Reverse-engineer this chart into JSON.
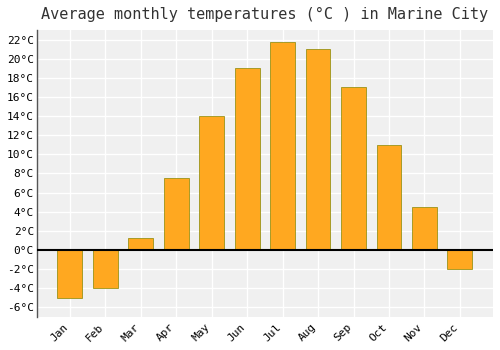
{
  "title": "Average monthly temperatures (°C ) in Marine City",
  "months": [
    "Jan",
    "Feb",
    "Mar",
    "Apr",
    "May",
    "Jun",
    "Jul",
    "Aug",
    "Sep",
    "Oct",
    "Nov",
    "Dec"
  ],
  "values": [
    -5.0,
    -4.0,
    1.2,
    7.5,
    14.0,
    19.0,
    21.8,
    21.0,
    17.0,
    11.0,
    4.5,
    -2.0
  ],
  "bar_color": "#FFA820",
  "bar_edge_color": "#888800",
  "ylim": [
    -7,
    23
  ],
  "yticks": [
    -6,
    -4,
    -2,
    0,
    2,
    4,
    6,
    8,
    10,
    12,
    14,
    16,
    18,
    20,
    22
  ],
  "plot_bg_color": "#f0f0f0",
  "fig_bg_color": "#ffffff",
  "grid_color": "#ffffff",
  "title_fontsize": 11,
  "tick_fontsize": 8,
  "font_family": "monospace"
}
